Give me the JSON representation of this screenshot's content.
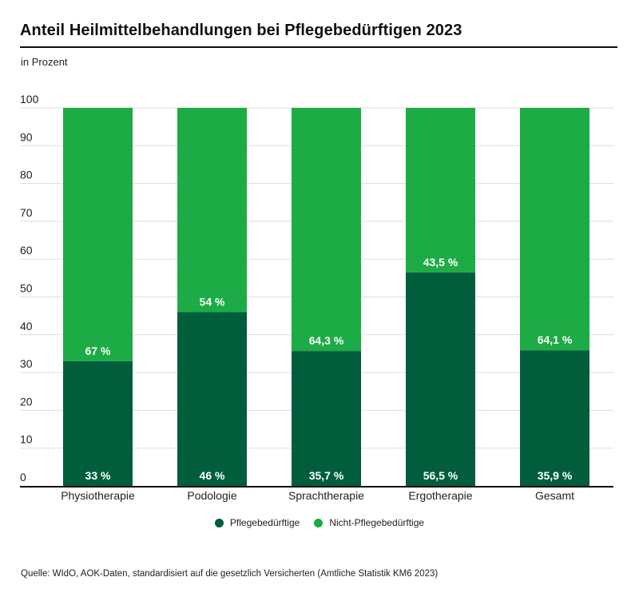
{
  "header": {
    "title": "Anteil Heilmittelbehandlungen bei Pflegebedürftigen 2023",
    "subtitle": "in Prozent"
  },
  "source": "Quelle: WIdO, AOK-Daten, standardisiert auf die gesetzlich Versicherten (Amtliche Statistik KM6 2023)",
  "colors": {
    "pflegebeduerftige": "#005e3c",
    "nicht_pflegebeduerftige": "#1dab45",
    "grid": "#dddddd",
    "axis": "#111111"
  },
  "chart_data": {
    "type": "bar",
    "stacked": true,
    "title": "Anteil Heilmittelbehandlungen bei Pflegebedürftigen 2023",
    "subtitle": "in Prozent",
    "xlabel": "",
    "ylabel": "in Prozent",
    "ylim": [
      0,
      100
    ],
    "yticks": [
      0,
      10,
      20,
      30,
      40,
      50,
      60,
      70,
      80,
      90,
      100
    ],
    "grid": true,
    "legend_position": "bottom-center",
    "categories": [
      "Physiotherapie",
      "Podologie",
      "Sprachtherapie",
      "Ergotherapie",
      "Gesamt"
    ],
    "series": [
      {
        "name": "Pflegebedürftige",
        "color": "#005e3c",
        "values": [
          33,
          46,
          35.7,
          56.5,
          35.9
        ],
        "labels": [
          "33 %",
          "46 %",
          "35,7 %",
          "56,5 %",
          "35,9 %"
        ]
      },
      {
        "name": "Nicht-Pflegebedürftige",
        "color": "#1dab45",
        "values": [
          67,
          54,
          64.3,
          43.5,
          64.1
        ],
        "labels": [
          "67 %",
          "54 %",
          "64,3 %",
          "43,5 %",
          "64,1 %"
        ]
      }
    ]
  }
}
